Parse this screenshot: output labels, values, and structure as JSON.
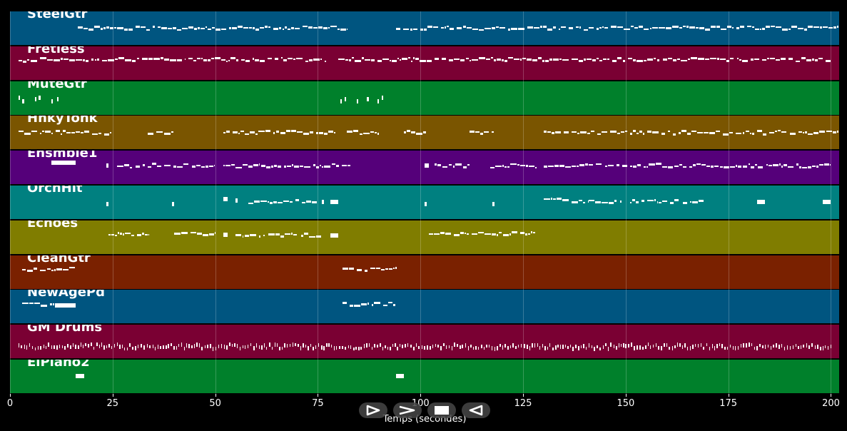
{
  "colors": [
    "#005580",
    "#7a0033",
    "#00802b",
    "#7a5500",
    "#55007a",
    "#008080",
    "#807d00",
    "#7a2100"
  ],
  "tracks": [
    {
      "name": "SteelGtr",
      "color": "#005580",
      "notes": [
        [
          16.5,
          82,
          0.5,
          true
        ],
        [
          94,
          201.5,
          0.5,
          true
        ]
      ]
    },
    {
      "name": "Fretless",
      "color": "#7a0033",
      "notes": [
        [
          2,
          77,
          0.4,
          true
        ],
        [
          80,
          200,
          0.4,
          true
        ]
      ]
    },
    {
      "name": "MuteGtr",
      "color": "#00802b",
      "notes": [
        [
          2,
          2.4,
          0.5,
          false
        ],
        [
          3,
          3.4,
          0.6,
          false
        ],
        [
          6,
          6.4,
          0.55,
          false
        ],
        [
          7,
          7.4,
          0.5,
          false
        ],
        [
          10,
          10.4,
          0.6,
          false
        ],
        [
          11.5,
          11.9,
          0.55,
          false
        ],
        [
          80.5,
          80.9,
          0.6,
          false
        ],
        [
          81.5,
          81.9,
          0.55,
          false
        ],
        [
          84.5,
          84.9,
          0.6,
          false
        ],
        [
          87,
          87.4,
          0.55,
          false
        ],
        [
          89.5,
          89.9,
          0.6,
          false
        ],
        [
          90.5,
          90.9,
          0.5,
          false
        ]
      ]
    },
    {
      "name": "HnkyTonk",
      "color": "#7a5500",
      "notes": [
        [
          2,
          24.5,
          0.5,
          true
        ],
        [
          33.5,
          40,
          0.5,
          true
        ],
        [
          52,
          79,
          0.5,
          true
        ],
        [
          82,
          90,
          0.5,
          true
        ],
        [
          96,
          101.5,
          0.5,
          true
        ],
        [
          112,
          118,
          0.5,
          true
        ],
        [
          130,
          202,
          0.5,
          true
        ]
      ]
    },
    {
      "name": "Ensmble1",
      "color": "#55007a",
      "notes": [
        [
          10,
          16,
          0.35,
          false
        ],
        [
          23.5,
          24,
          0.45,
          false
        ],
        [
          26,
          50,
          0.45,
          true
        ],
        [
          52,
          83,
          0.45,
          true
        ],
        [
          101,
          102,
          0.45,
          false
        ],
        [
          103.5,
          112,
          0.45,
          true
        ],
        [
          117,
          128,
          0.45,
          true
        ],
        [
          130,
          200,
          0.45,
          true
        ]
      ]
    },
    {
      "name": "OrchHit",
      "color": "#008080",
      "notes": [
        [
          23.5,
          24,
          0.55,
          false
        ],
        [
          39.5,
          40,
          0.55,
          false
        ],
        [
          52,
          53,
          0.4,
          false
        ],
        [
          55,
          55.5,
          0.45,
          false
        ],
        [
          58,
          75,
          0.48,
          true
        ],
        [
          76,
          76.5,
          0.48,
          false
        ],
        [
          78,
          80,
          0.48,
          false
        ],
        [
          101,
          101.5,
          0.55,
          false
        ],
        [
          117.5,
          118,
          0.55,
          false
        ],
        [
          130,
          141,
          0.45,
          true
        ],
        [
          141,
          149,
          0.48,
          true
        ],
        [
          151,
          163,
          0.48,
          true
        ],
        [
          164,
          169,
          0.48,
          true
        ],
        [
          182,
          184,
          0.48,
          false
        ],
        [
          198,
          200,
          0.48,
          false
        ]
      ]
    },
    {
      "name": "Echoes",
      "color": "#807d00",
      "notes": [
        [
          24,
          34,
          0.4,
          true
        ],
        [
          40,
          50,
          0.4,
          true
        ],
        [
          52,
          53,
          0.42,
          false
        ],
        [
          55,
          62,
          0.45,
          true
        ],
        [
          63,
          70,
          0.45,
          true
        ],
        [
          71,
          76,
          0.45,
          true
        ],
        [
          78,
          80,
          0.45,
          false
        ],
        [
          102,
          128,
          0.4,
          true
        ]
      ]
    },
    {
      "name": "CleanGtr",
      "color": "#7a2100",
      "notes": [
        [
          3,
          16,
          0.42,
          true
        ],
        [
          81,
          94,
          0.42,
          true
        ]
      ]
    },
    {
      "name": "NewAgePd",
      "color": "#005580",
      "notes": [
        [
          3,
          11,
          0.42,
          true
        ],
        [
          11,
          16,
          0.45,
          false
        ],
        [
          81,
          94,
          0.42,
          true
        ]
      ]
    },
    {
      "name": "GM Drums",
      "color": "#7a0033",
      "notes": [
        [
          2,
          200,
          0.65,
          true
        ]
      ]
    },
    {
      "name": "ElPiano2",
      "color": "#00802b",
      "notes": [
        [
          16,
          18,
          0.48,
          false
        ],
        [
          94,
          96,
          0.48,
          false
        ]
      ]
    }
  ],
  "axis": {
    "ticks": [
      0,
      25,
      50,
      75,
      100,
      125,
      150,
      175,
      200
    ],
    "tick_labels": [
      "0",
      "25",
      "50",
      "75",
      "100",
      "125",
      "150",
      "175",
      "200"
    ],
    "xlabel": "Temps (secondes)",
    "xlim": [
      0,
      202
    ]
  },
  "controls": [
    {
      "name": "play-button",
      "icon": "play-icon"
    },
    {
      "name": "forward-button",
      "icon": "forward-icon"
    },
    {
      "name": "stop-button",
      "icon": "stop-icon"
    },
    {
      "name": "back-button",
      "icon": "back-icon"
    }
  ]
}
